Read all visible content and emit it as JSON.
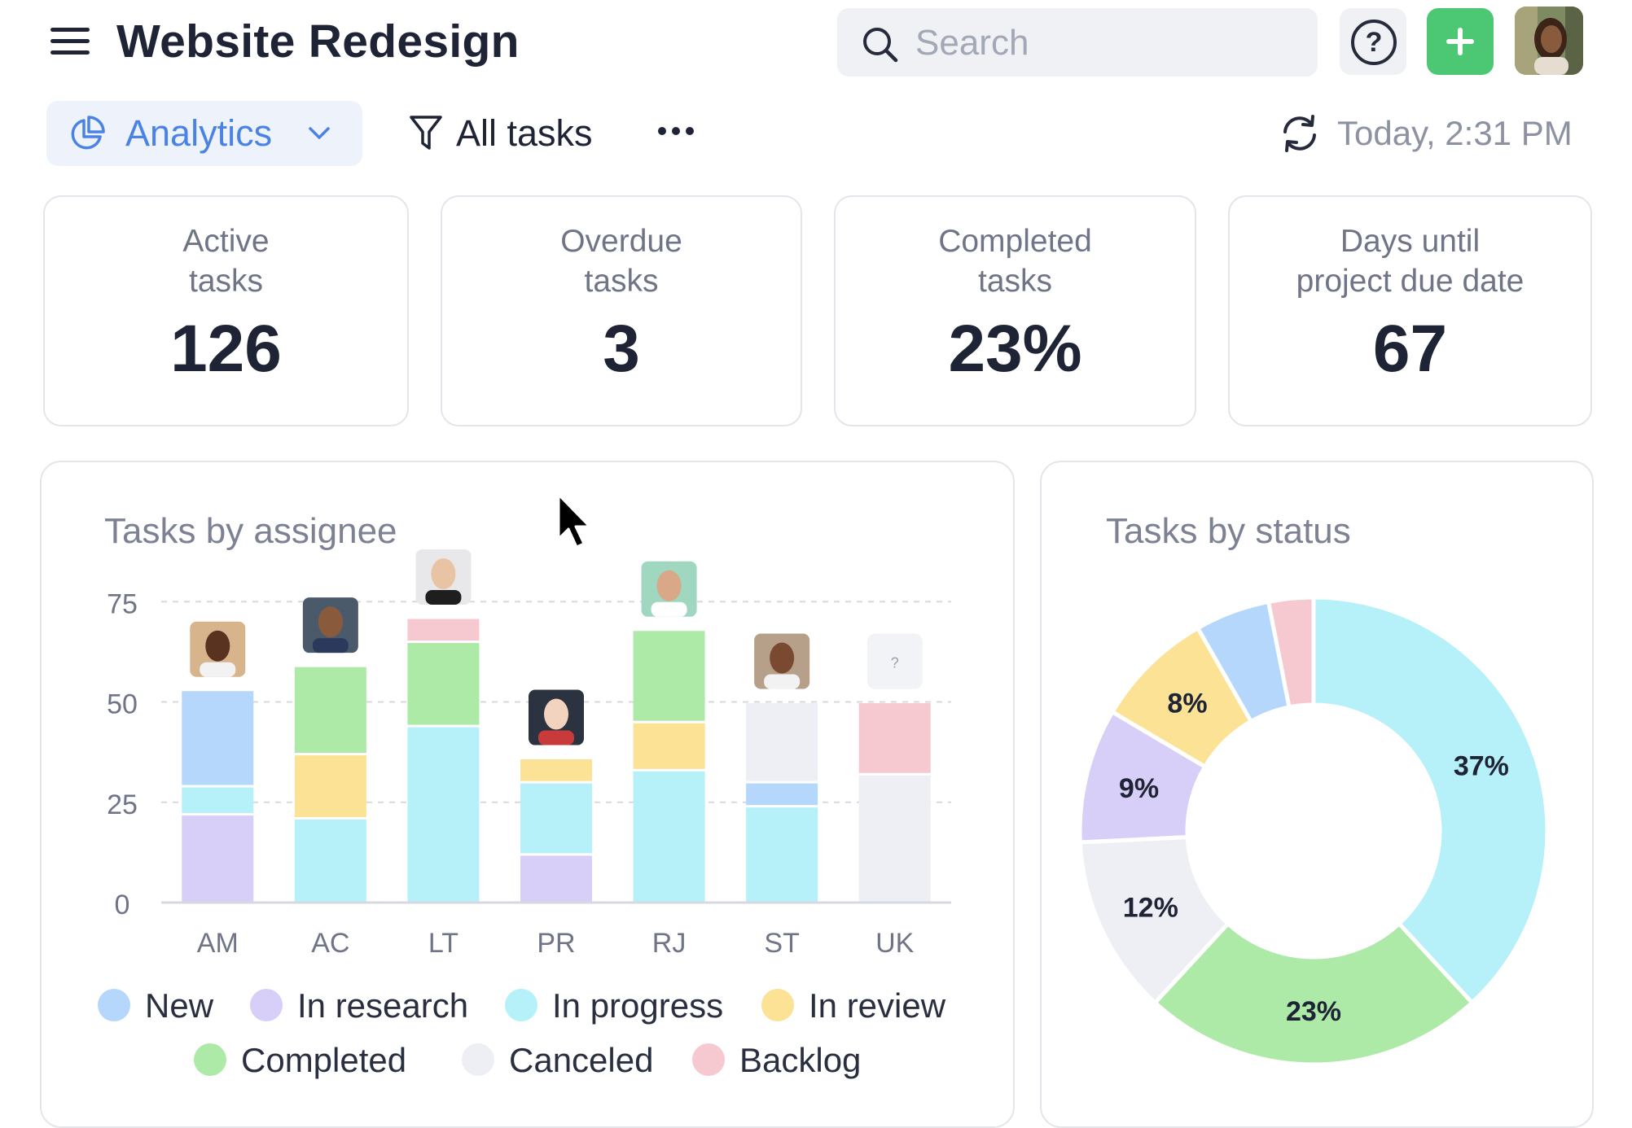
{
  "header": {
    "title": "Website Redesign",
    "search_placeholder": "Search",
    "help_label": "?"
  },
  "toolbar": {
    "view_label": "Analytics",
    "filter_label": "All tasks",
    "timestamp": "Today, 2:31 PM"
  },
  "stats": [
    {
      "label": "Active\ntasks",
      "value": "126"
    },
    {
      "label": "Overdue\ntasks",
      "value": "3"
    },
    {
      "label": "Completed\ntasks",
      "value": "23%"
    },
    {
      "label": "Days until\nproject due date",
      "value": "67"
    }
  ],
  "status_colors": {
    "New": "#b4d7fb",
    "In research": "#d8cff8",
    "In progress": "#b6f0f8",
    "In review": "#fbe295",
    "Completed": "#ade9a7",
    "Canceled": "#eeeff5",
    "Backlog": "#f6c9d0"
  },
  "panels": {
    "assignee_title": "Tasks by assignee",
    "status_title": "Tasks by status"
  },
  "legend": [
    "New",
    "In research",
    "In progress",
    "In review",
    "Completed",
    "Canceled",
    "Backlog"
  ],
  "unassigned_placeholder": "?",
  "chart_data": [
    {
      "type": "bar",
      "stacked": true,
      "title": "Tasks by assignee",
      "categories": [
        "AM",
        "AC",
        "LT",
        "PR",
        "RJ",
        "ST",
        "UK"
      ],
      "ylim": [
        0,
        85
      ],
      "yticks": [
        0,
        25,
        50,
        75
      ],
      "grid": true,
      "legend_position": "bottom",
      "series": [
        {
          "name": "In research",
          "values": [
            22,
            0,
            0,
            12,
            0,
            0,
            0
          ]
        },
        {
          "name": "In progress",
          "values": [
            7,
            21,
            44,
            18,
            33,
            24,
            0
          ]
        },
        {
          "name": "In review",
          "values": [
            0,
            16,
            0,
            6,
            12,
            0,
            0
          ]
        },
        {
          "name": "New",
          "values": [
            24,
            0,
            0,
            0,
            0,
            6,
            0
          ]
        },
        {
          "name": "Completed",
          "values": [
            0,
            22,
            21,
            0,
            23,
            0,
            0
          ]
        },
        {
          "name": "Canceled",
          "values": [
            0,
            0,
            0,
            0,
            0,
            20,
            32
          ]
        },
        {
          "name": "Backlog",
          "values": [
            0,
            0,
            6,
            0,
            0,
            0,
            18
          ]
        }
      ]
    },
    {
      "type": "pie",
      "donut": true,
      "title": "Tasks by status",
      "slices": [
        {
          "name": "In progress",
          "value": 37
        },
        {
          "name": "Completed",
          "value": 23
        },
        {
          "name": "Canceled",
          "value": 12
        },
        {
          "name": "In research",
          "value": 9
        },
        {
          "name": "In review",
          "value": 8
        },
        {
          "name": "New",
          "value": 5
        },
        {
          "name": "Backlog",
          "value": 3
        }
      ],
      "slice_labels": [
        "37%",
        "23%",
        "12%",
        "9%",
        "8%"
      ]
    }
  ]
}
